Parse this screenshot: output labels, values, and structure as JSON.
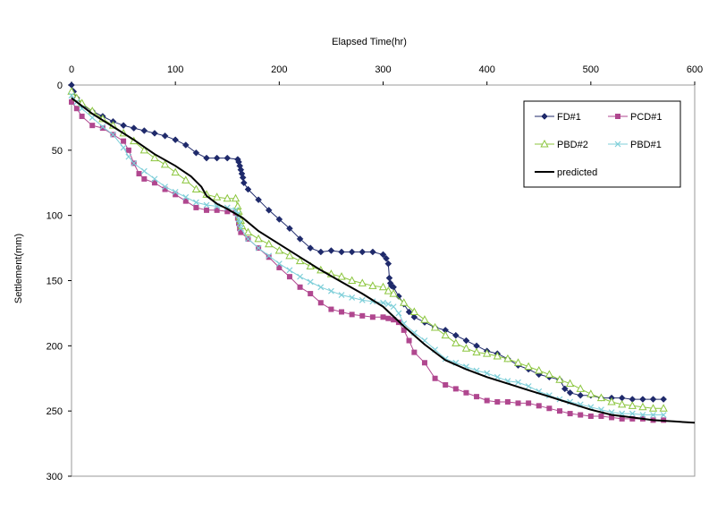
{
  "chart_data": {
    "type": "line",
    "title": "",
    "xlabel": "Elapsed Time(hr)",
    "ylabel": "Settlement(mm)",
    "xlim": [
      0,
      600
    ],
    "ylim": [
      0,
      300
    ],
    "y_inverted": true,
    "x_axis_position": "top",
    "x_ticks": [
      0,
      100,
      200,
      300,
      400,
      500,
      600
    ],
    "y_ticks": [
      0,
      50,
      100,
      150,
      200,
      250,
      300
    ],
    "grid": false,
    "legend_position": "top-right",
    "series": [
      {
        "name": "FD#1",
        "color": "#1F2A6B",
        "marker": "diamond",
        "points": [
          [
            0,
            0
          ],
          [
            2,
            5
          ],
          [
            5,
            10
          ],
          [
            10,
            15
          ],
          [
            20,
            20
          ],
          [
            30,
            24
          ],
          [
            40,
            28
          ],
          [
            50,
            31
          ],
          [
            60,
            33
          ],
          [
            70,
            35
          ],
          [
            80,
            37
          ],
          [
            90,
            39
          ],
          [
            100,
            42
          ],
          [
            110,
            46
          ],
          [
            120,
            52
          ],
          [
            130,
            56
          ],
          [
            140,
            56
          ],
          [
            150,
            56
          ],
          [
            160,
            57
          ],
          [
            161,
            59
          ],
          [
            162,
            62
          ],
          [
            163,
            65
          ],
          [
            164,
            68
          ],
          [
            165,
            71
          ],
          [
            166,
            75
          ],
          [
            170,
            80
          ],
          [
            180,
            88
          ],
          [
            190,
            96
          ],
          [
            200,
            103
          ],
          [
            210,
            110
          ],
          [
            220,
            118
          ],
          [
            230,
            125
          ],
          [
            240,
            128
          ],
          [
            250,
            127
          ],
          [
            260,
            128
          ],
          [
            270,
            128
          ],
          [
            280,
            128
          ],
          [
            290,
            128
          ],
          [
            300,
            130
          ],
          [
            303,
            133
          ],
          [
            305,
            137
          ],
          [
            306,
            148
          ],
          [
            307,
            152
          ],
          [
            308,
            154
          ],
          [
            310,
            155
          ],
          [
            315,
            162
          ],
          [
            320,
            168
          ],
          [
            325,
            174
          ],
          [
            330,
            178
          ],
          [
            340,
            182
          ],
          [
            350,
            186
          ],
          [
            360,
            188
          ],
          [
            370,
            192
          ],
          [
            380,
            196
          ],
          [
            390,
            200
          ],
          [
            400,
            204
          ],
          [
            410,
            206
          ],
          [
            420,
            210
          ],
          [
            430,
            215
          ],
          [
            440,
            218
          ],
          [
            450,
            222
          ],
          [
            460,
            224
          ],
          [
            470,
            226
          ],
          [
            475,
            233
          ],
          [
            480,
            236
          ],
          [
            490,
            238
          ],
          [
            500,
            238
          ],
          [
            510,
            240
          ],
          [
            520,
            240
          ],
          [
            530,
            240
          ],
          [
            540,
            241
          ],
          [
            550,
            241
          ],
          [
            560,
            241
          ],
          [
            570,
            241
          ]
        ]
      },
      {
        "name": "PCD#1",
        "color": "#B0478F",
        "marker": "square",
        "points": [
          [
            0,
            13
          ],
          [
            5,
            18
          ],
          [
            10,
            24
          ],
          [
            20,
            31
          ],
          [
            30,
            33
          ],
          [
            40,
            38
          ],
          [
            50,
            43
          ],
          [
            55,
            50
          ],
          [
            60,
            60
          ],
          [
            65,
            68
          ],
          [
            70,
            72
          ],
          [
            80,
            75
          ],
          [
            90,
            80
          ],
          [
            100,
            84
          ],
          [
            110,
            89
          ],
          [
            120,
            94
          ],
          [
            130,
            96
          ],
          [
            140,
            96
          ],
          [
            150,
            97
          ],
          [
            158,
            98
          ],
          [
            160,
            102
          ],
          [
            161,
            106
          ],
          [
            162,
            110
          ],
          [
            163,
            113
          ],
          [
            170,
            118
          ],
          [
            180,
            125
          ],
          [
            190,
            132
          ],
          [
            200,
            140
          ],
          [
            210,
            147
          ],
          [
            220,
            155
          ],
          [
            230,
            160
          ],
          [
            240,
            167
          ],
          [
            250,
            172
          ],
          [
            260,
            174
          ],
          [
            270,
            176
          ],
          [
            280,
            177
          ],
          [
            290,
            178
          ],
          [
            300,
            178
          ],
          [
            305,
            179
          ],
          [
            310,
            180
          ],
          [
            315,
            182
          ],
          [
            320,
            188
          ],
          [
            325,
            196
          ],
          [
            330,
            205
          ],
          [
            340,
            213
          ],
          [
            350,
            225
          ],
          [
            360,
            230
          ],
          [
            370,
            233
          ],
          [
            380,
            236
          ],
          [
            390,
            239
          ],
          [
            400,
            242
          ],
          [
            410,
            243
          ],
          [
            420,
            243
          ],
          [
            430,
            244
          ],
          [
            440,
            244
          ],
          [
            450,
            246
          ],
          [
            460,
            248
          ],
          [
            470,
            250
          ],
          [
            480,
            252
          ],
          [
            490,
            253
          ],
          [
            500,
            254
          ],
          [
            510,
            254
          ],
          [
            520,
            255
          ],
          [
            530,
            256
          ],
          [
            540,
            256
          ],
          [
            550,
            256
          ],
          [
            560,
            257
          ],
          [
            570,
            257
          ]
        ]
      },
      {
        "name": "PBD#2",
        "color": "#8CC63F",
        "marker": "triangle",
        "points": [
          [
            0,
            5
          ],
          [
            5,
            10
          ],
          [
            10,
            14
          ],
          [
            20,
            20
          ],
          [
            30,
            26
          ],
          [
            40,
            31
          ],
          [
            50,
            37
          ],
          [
            60,
            43
          ],
          [
            70,
            50
          ],
          [
            80,
            56
          ],
          [
            90,
            61
          ],
          [
            100,
            67
          ],
          [
            110,
            73
          ],
          [
            120,
            80
          ],
          [
            130,
            84
          ],
          [
            140,
            86
          ],
          [
            150,
            87
          ],
          [
            158,
            87
          ],
          [
            160,
            93
          ],
          [
            161,
            97
          ],
          [
            162,
            101
          ],
          [
            163,
            104
          ],
          [
            164,
            108
          ],
          [
            170,
            113
          ],
          [
            180,
            118
          ],
          [
            190,
            122
          ],
          [
            200,
            127
          ],
          [
            210,
            131
          ],
          [
            220,
            135
          ],
          [
            230,
            139
          ],
          [
            240,
            142
          ],
          [
            250,
            145
          ],
          [
            260,
            147
          ],
          [
            270,
            150
          ],
          [
            280,
            152
          ],
          [
            290,
            154
          ],
          [
            300,
            155
          ],
          [
            305,
            158
          ],
          [
            310,
            160
          ],
          [
            320,
            167
          ],
          [
            330,
            174
          ],
          [
            340,
            180
          ],
          [
            350,
            186
          ],
          [
            360,
            192
          ],
          [
            370,
            198
          ],
          [
            380,
            202
          ],
          [
            390,
            205
          ],
          [
            400,
            206
          ],
          [
            410,
            208
          ],
          [
            420,
            210
          ],
          [
            430,
            213
          ],
          [
            440,
            216
          ],
          [
            450,
            219
          ],
          [
            460,
            222
          ],
          [
            470,
            226
          ],
          [
            480,
            229
          ],
          [
            490,
            233
          ],
          [
            500,
            237
          ],
          [
            510,
            240
          ],
          [
            520,
            243
          ],
          [
            530,
            245
          ],
          [
            540,
            246
          ],
          [
            550,
            247
          ],
          [
            560,
            248
          ],
          [
            570,
            248
          ]
        ]
      },
      {
        "name": "PBD#1",
        "color": "#7FCFD9",
        "marker": "x",
        "points": [
          [
            0,
            8
          ],
          [
            5,
            13
          ],
          [
            10,
            18
          ],
          [
            20,
            25
          ],
          [
            30,
            32
          ],
          [
            40,
            38
          ],
          [
            50,
            48
          ],
          [
            55,
            55
          ],
          [
            60,
            60
          ],
          [
            70,
            66
          ],
          [
            80,
            72
          ],
          [
            90,
            78
          ],
          [
            100,
            82
          ],
          [
            110,
            86
          ],
          [
            120,
            90
          ],
          [
            130,
            92
          ],
          [
            140,
            93
          ],
          [
            150,
            94
          ],
          [
            158,
            96
          ],
          [
            160,
            99
          ],
          [
            161,
            103
          ],
          [
            162,
            106
          ],
          [
            163,
            110
          ],
          [
            170,
            118
          ],
          [
            180,
            125
          ],
          [
            190,
            131
          ],
          [
            200,
            137
          ],
          [
            210,
            142
          ],
          [
            220,
            147
          ],
          [
            230,
            151
          ],
          [
            240,
            155
          ],
          [
            250,
            158
          ],
          [
            260,
            161
          ],
          [
            270,
            163
          ],
          [
            280,
            165
          ],
          [
            290,
            166
          ],
          [
            300,
            167
          ],
          [
            305,
            168
          ],
          [
            310,
            170
          ],
          [
            315,
            175
          ],
          [
            320,
            183
          ],
          [
            330,
            190
          ],
          [
            340,
            196
          ],
          [
            350,
            203
          ],
          [
            360,
            210
          ],
          [
            370,
            213
          ],
          [
            380,
            216
          ],
          [
            390,
            219
          ],
          [
            400,
            221
          ],
          [
            410,
            224
          ],
          [
            420,
            227
          ],
          [
            430,
            228
          ],
          [
            440,
            231
          ],
          [
            450,
            235
          ],
          [
            460,
            238
          ],
          [
            470,
            241
          ],
          [
            480,
            243
          ],
          [
            490,
            245
          ],
          [
            500,
            247
          ],
          [
            510,
            249
          ],
          [
            520,
            251
          ],
          [
            530,
            252
          ],
          [
            540,
            252
          ],
          [
            550,
            253
          ],
          [
            560,
            253
          ],
          [
            570,
            253
          ]
        ]
      },
      {
        "name": "predicted",
        "color": "#000000",
        "marker": "none",
        "points": [
          [
            0,
            10
          ],
          [
            20,
            22
          ],
          [
            40,
            32
          ],
          [
            60,
            42
          ],
          [
            80,
            53
          ],
          [
            100,
            62
          ],
          [
            115,
            70
          ],
          [
            125,
            78
          ],
          [
            130,
            85
          ],
          [
            140,
            91
          ],
          [
            150,
            95
          ],
          [
            165,
            102
          ],
          [
            180,
            112
          ],
          [
            200,
            122
          ],
          [
            220,
            132
          ],
          [
            240,
            142
          ],
          [
            260,
            151
          ],
          [
            280,
            160
          ],
          [
            300,
            170
          ],
          [
            320,
            185
          ],
          [
            340,
            199
          ],
          [
            360,
            211
          ],
          [
            380,
            218
          ],
          [
            400,
            224
          ],
          [
            420,
            229
          ],
          [
            440,
            234
          ],
          [
            460,
            239
          ],
          [
            480,
            244
          ],
          [
            500,
            249
          ],
          [
            520,
            253
          ],
          [
            540,
            255
          ],
          [
            560,
            257
          ],
          [
            580,
            258
          ],
          [
            600,
            259
          ]
        ]
      }
    ]
  }
}
